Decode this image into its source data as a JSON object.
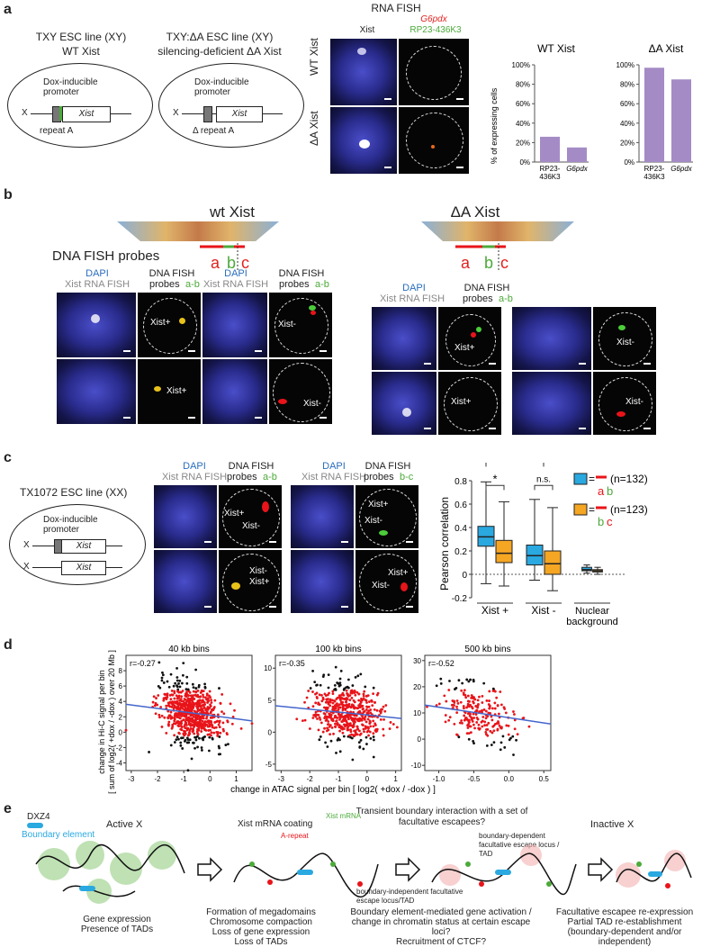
{
  "panel_a": {
    "label": "a",
    "line1_title": "TXY ESC line (XY)",
    "line1_sub": "WT Xist",
    "line2_title": "TXY:ΔA ESC line (XY)",
    "line2_sub": "silencing-deficient ΔA Xist",
    "dox_promoter": "Dox-inducible promoter",
    "xist": "Xist",
    "x_label": "X",
    "repeat_a": "repeat A",
    "delta_repeat_a": "Δ repeat A",
    "rna_fish_title": "RNA FISH",
    "col_xist": "Xist",
    "col_g6pdx": "G6pdx",
    "col_rp": "RP23-436K3",
    "row_wt": "WT Xist",
    "row_da": "ΔA Xist"
  },
  "chart_data": [
    {
      "type": "bar",
      "title": "WT Xist",
      "categories": [
        "RP23-436K3",
        "G6pdx"
      ],
      "values": [
        26,
        15
      ],
      "ylabel": "% of expressing cells",
      "ylim": [
        0,
        100
      ],
      "yticks": [
        "0%",
        "20%",
        "40%",
        "60%",
        "80%",
        "100%"
      ],
      "color": "#a58bc6"
    },
    {
      "type": "bar",
      "title": "ΔA Xist",
      "categories": [
        "RP23-436K3",
        "G6pdx"
      ],
      "values": [
        97,
        85
      ],
      "ylim": [
        0,
        100
      ],
      "yticks": [
        "0%",
        "20%",
        "40%",
        "60%",
        "80%",
        "100%"
      ],
      "color": "#a58bc6"
    },
    {
      "type": "box",
      "ylabel": "Pearson correlation",
      "ylim": [
        -0.2,
        0.8
      ],
      "yticks": [
        "-0.2",
        "0",
        "0.2",
        "0.4",
        "0.6",
        "0.8"
      ],
      "groups": [
        "Xist +",
        "Xist -",
        "Nuclear background"
      ],
      "series": [
        {
          "name": "a b (n=132)",
          "color": "#2aa8e0",
          "boxes": [
            {
              "min": -0.08,
              "q1": 0.24,
              "median": 0.32,
              "q3": 0.41,
              "max": 0.79
            },
            {
              "min": -0.05,
              "q1": 0.08,
              "median": 0.16,
              "q3": 0.25,
              "max": 0.64
            },
            {
              "min": 0.01,
              "q1": 0.03,
              "median": 0.04,
              "q3": 0.06,
              "max": 0.08
            }
          ]
        },
        {
          "name": "b c (n=123)",
          "color": "#f5a623",
          "boxes": [
            {
              "min": -0.1,
              "q1": 0.1,
              "median": 0.18,
              "q3": 0.29,
              "max": 0.62
            },
            {
              "min": -0.14,
              "q1": 0.0,
              "median": 0.09,
              "q3": 0.2,
              "max": 0.57
            },
            {
              "min": 0.0,
              "q1": 0.02,
              "median": 0.03,
              "q3": 0.04,
              "max": 0.06
            }
          ]
        }
      ],
      "annotations": [
        "*",
        "*",
        "n.s."
      ]
    },
    {
      "type": "scatter",
      "panels": [
        {
          "title": "40 kb bins",
          "r": "r=-0.27",
          "xlim": [
            -3.2,
            1.6
          ],
          "ylim": [
            -5,
            10
          ],
          "xticks": [
            "-3",
            "-2",
            "-1",
            "0",
            "1"
          ],
          "yticks": [
            "-4",
            "-2",
            "0",
            "2",
            "4",
            "6",
            "8"
          ]
        },
        {
          "title": "100 kb bins",
          "r": "r=-0.35",
          "xlim": [
            -3.2,
            1.2
          ],
          "ylim": [
            -6,
            12
          ],
          "xticks": [
            "-3",
            "-2",
            "-1",
            "0",
            "1"
          ],
          "yticks": [
            "-5",
            "0",
            "5",
            "10"
          ]
        },
        {
          "title": "500 kb bins",
          "r": "r=-0.52",
          "xlim": [
            -1.2,
            0.6
          ],
          "ylim": [
            -12,
            32
          ],
          "xticks": [
            "-1.0",
            "-0.5",
            "0.0",
            "0.5"
          ],
          "yticks": [
            "-10",
            "0",
            "10",
            "20",
            "30"
          ]
        }
      ],
      "ylabel_line1": "change in Hi-C signal per bin",
      "ylabel_line2": "[ sum of log2( +dox / -dox ) over 20 Mb ]",
      "xlabel": "change in ATAC signal per bin [ log2( +dox / -dox ) ]",
      "colors": {
        "red": "#e8141a",
        "black": "#111111",
        "fit": "#4466cc"
      }
    }
  ],
  "panel_b": {
    "label": "b",
    "wt_title": "wt Xist",
    "da_title": "ΔA Xist",
    "probes_title": "DNA FISH probes",
    "probe_a": "a",
    "probe_b": "b",
    "probe_c": "c",
    "dapi": "DAPI",
    "xist_rna_fish": "Xist RNA FISH",
    "dna_fish": "DNA FISH",
    "probes_ab": "probes",
    "ab": "a-b",
    "xist_plus": "Xist+",
    "xist_minus": "Xist-"
  },
  "panel_c": {
    "label": "c",
    "line_title": "TX1072 ESC line (XX)",
    "dox_promoter": "Dox-inducible promoter",
    "xist": "Xist",
    "x_label": "X",
    "dapi": "DAPI",
    "xist_rna_fish": "Xist RNA FISH",
    "dna_fish": "DNA FISH",
    "probes": "probes",
    "ab": "a-b",
    "bc": "b-c",
    "xist_plus": "Xist+",
    "xist_minus": "Xist-",
    "n1": "(n=132)",
    "n2": "(n=123)",
    "eq": "="
  },
  "panel_d": {
    "label": "d"
  },
  "panel_e": {
    "label": "e",
    "dxz4": "DXZ4",
    "boundary": "Boundary element",
    "stage1_title": "Active X",
    "stage2_title": "Xist mRNA coating",
    "stage3_title": "Transient boundary interaction with a set of facultative escapees?",
    "stage4_title": "Inactive X",
    "xist_mrna": "Xist mRNA",
    "a_repeat": "A-repeat",
    "dep_label": "boundary-dependent facultative escape locus / TAD",
    "indep_label": "boundary-independent facultative escape locus/TAD",
    "cap1": "Gene expression\nPresence of TADs",
    "cap2": "Formation of megadomains\nChromosome compaction\nLoss of gene expression\nLoss of TADs",
    "cap3": "Boundary element-mediated gene activation /\nchange in chromatin status at certain escape loci?\nRecruitment of CTCF?",
    "cap4": "Facultative escapee re-expression\nPartial TAD re-establishment\n(boundary-dependent and/or independent)"
  }
}
